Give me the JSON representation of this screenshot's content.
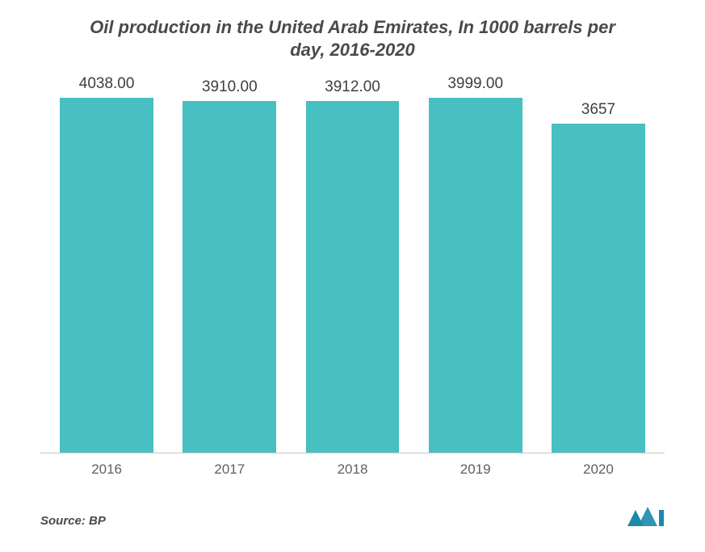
{
  "title": "Oil production in the United Arab Emirates, In 1000 barrels per day, 2016-2020",
  "chart": {
    "type": "bar",
    "categories": [
      "2016",
      "2017",
      "2018",
      "2019",
      "2020"
    ],
    "values": [
      4038.0,
      3910.0,
      3912.0,
      3999.0,
      3657
    ],
    "value_labels": [
      "4038.00",
      "3910.00",
      "3912.00",
      "3999.00",
      "3657"
    ],
    "bar_color": "#48bfc1",
    "value_label_color": "#3f3f3f",
    "value_label_fontsize": 19,
    "category_label_color": "#606060",
    "category_label_fontsize": 17,
    "title_color": "#4a4a4a",
    "title_fontsize": 22,
    "title_fontstyle": "italic",
    "background_color": "#ffffff",
    "axis_line_color": "#c8c8c8",
    "y_max": 4200,
    "bar_width_ratio": 0.76
  },
  "source": {
    "label": "Source:",
    "value": "BP"
  },
  "logo_color": "#1a8aa8"
}
